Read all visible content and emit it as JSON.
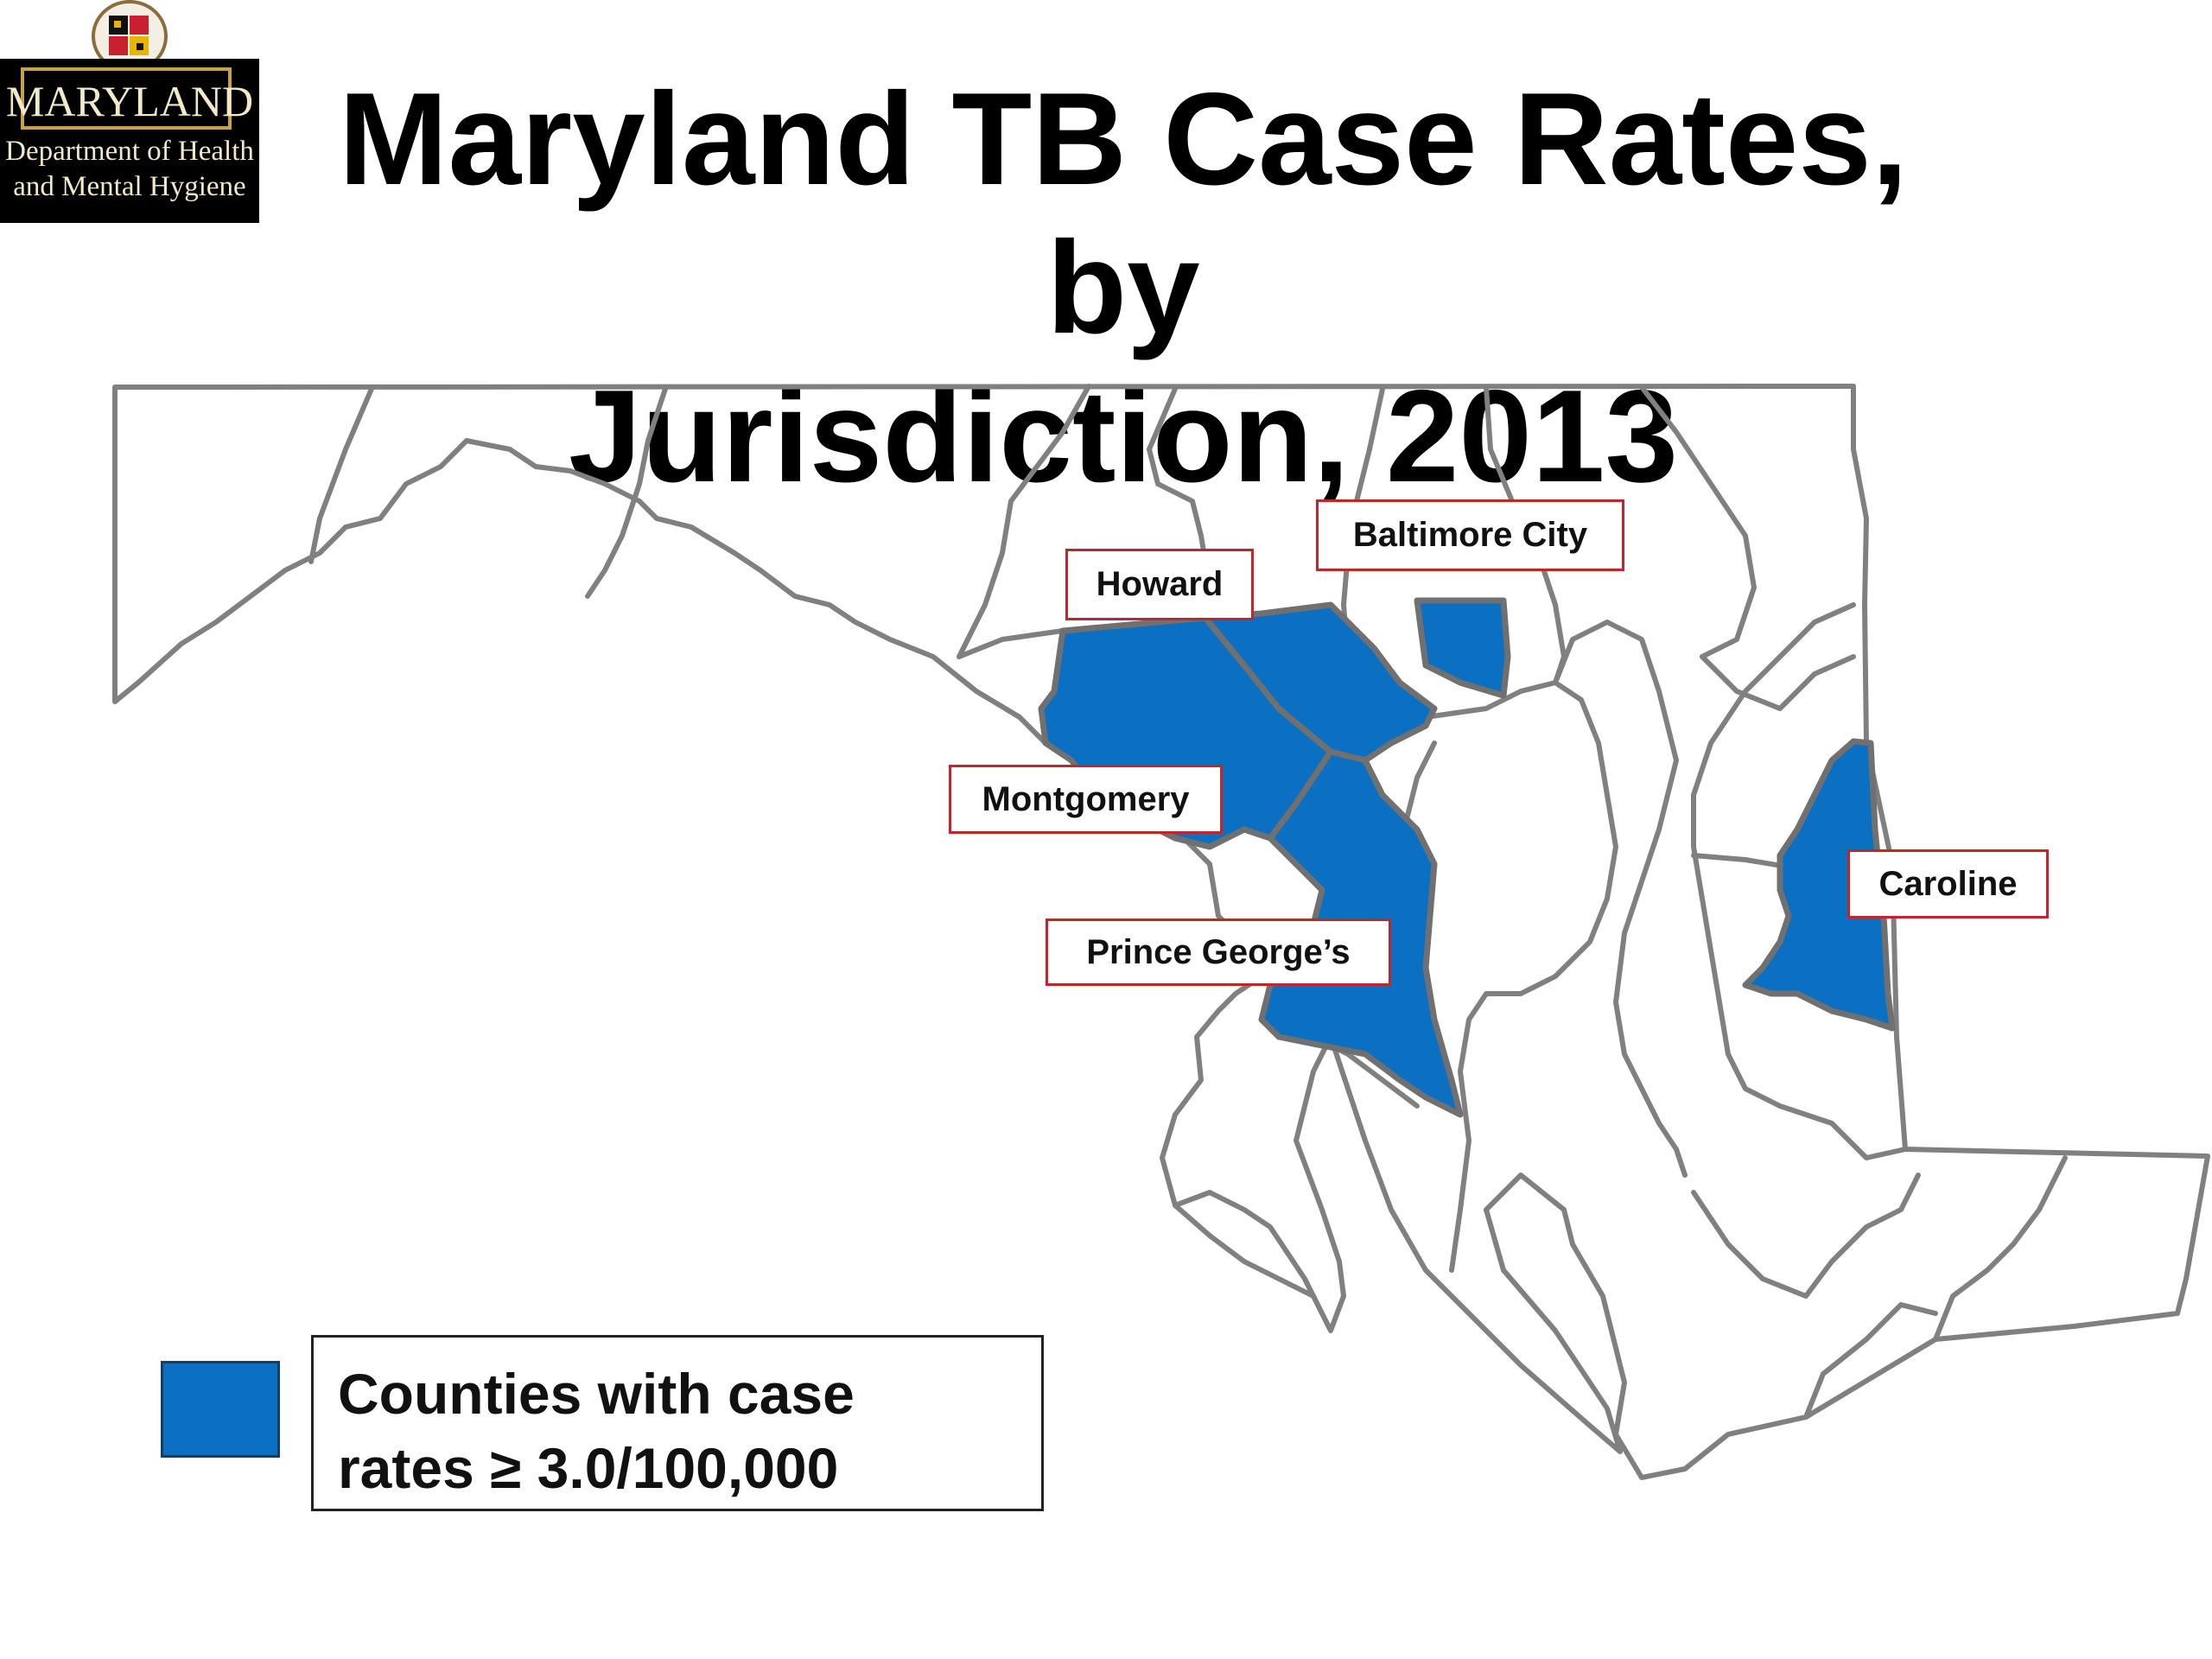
{
  "logo": {
    "name": "MARYLAND",
    "line1": "Department of Health",
    "line2": "and Mental Hygiene"
  },
  "title": {
    "line1": "Maryland TB Case Rates, by",
    "line2": "Jurisdiction, 2013"
  },
  "map": {
    "highlight_color": "#0b6fc2",
    "border_color": "#808080",
    "label_border_color": "#c0272d",
    "highlighted_jurisdictions": [
      "Baltimore City",
      "Howard",
      "Montgomery",
      "Prince George’s",
      "Caroline"
    ]
  },
  "labels": {
    "baltimore_city": "Baltimore City",
    "howard": "Howard",
    "montgomery": "Montgomery",
    "prince_georges": "Prince George’s",
    "caroline": "Caroline"
  },
  "legend": {
    "line1": "Counties with case",
    "line2": "rates ≥ 3.0/100,000"
  }
}
